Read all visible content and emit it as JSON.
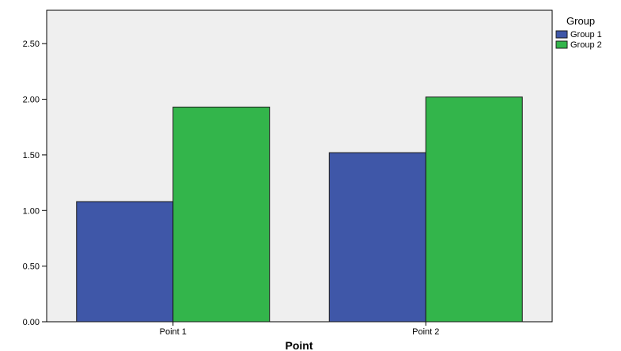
{
  "chart_data": {
    "type": "bar",
    "title": "",
    "xlabel": "Point",
    "ylabel": "",
    "categories": [
      "Point 1",
      "Point 2"
    ],
    "series": [
      {
        "name": "Group 1",
        "color": "#3F57A8",
        "values": [
          1.08,
          1.52
        ]
      },
      {
        "name": "Group 2",
        "color": "#33B54B",
        "values": [
          1.93,
          2.02
        ]
      }
    ],
    "ylim": [
      0,
      2.8
    ],
    "yticks": [
      0,
      0.5,
      1.0,
      1.5,
      2.0,
      2.5
    ],
    "ytick_labels": [
      "0.00",
      "0.50",
      "1.00",
      "1.50",
      "2.00",
      "2.50"
    ],
    "legend_title": "Group",
    "legend_position": "top-right outside",
    "grid": false,
    "plot_background": "#EFEFEF"
  }
}
